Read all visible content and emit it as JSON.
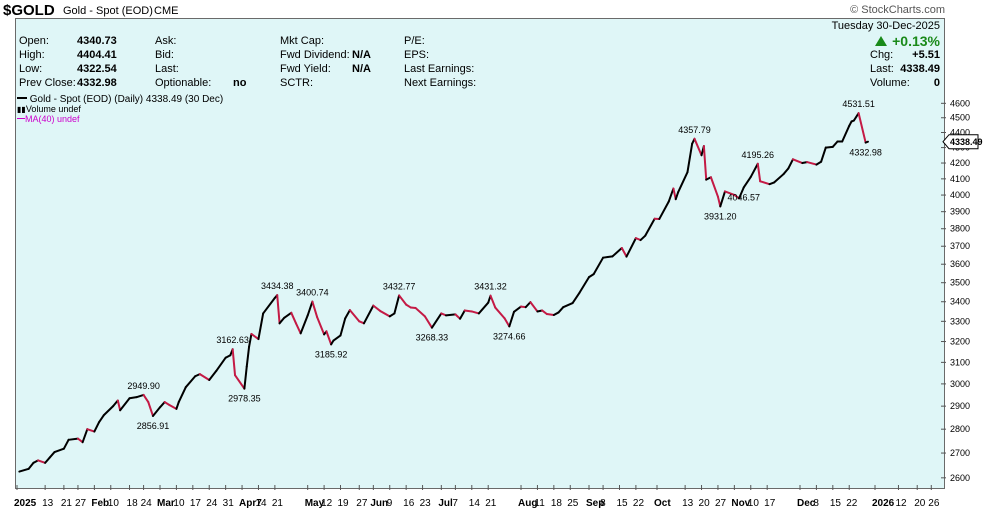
{
  "header": {
    "symbol": "$GOLD",
    "description": "Gold - Spot (EOD)",
    "exchange": "CME",
    "brand": "© StockCharts.com"
  },
  "quote": {
    "date": "Tuesday  30-Dec-2025",
    "change_pct": "+0.13%",
    "change_color": "#1a8a1a",
    "left_stats": [
      {
        "label": "Open:",
        "value": "4340.73"
      },
      {
        "label": "High:",
        "value": "4404.41"
      },
      {
        "label": "Low:",
        "value": "4322.54"
      },
      {
        "label": "Prev Close:",
        "value": "4332.98"
      }
    ],
    "col2": [
      {
        "label": "Ask:",
        "value": ""
      },
      {
        "label": "Bid:",
        "value": ""
      },
      {
        "label": "Last:",
        "value": ""
      },
      {
        "label": "Optionable:",
        "value": "no"
      }
    ],
    "col3": [
      {
        "label": "Mkt Cap:",
        "value": ""
      },
      {
        "label": "Fwd Dividend:",
        "value": "N/A"
      },
      {
        "label": "Fwd Yield:",
        "value": "N/A"
      },
      {
        "label": "SCTR:",
        "value": ""
      }
    ],
    "col4": [
      {
        "label": "P/E:",
        "value": ""
      },
      {
        "label": "EPS:",
        "value": ""
      },
      {
        "label": "Last Earnings:",
        "value": ""
      },
      {
        "label": "Next Earnings:",
        "value": ""
      }
    ],
    "right_stats": [
      {
        "label": "Chg:",
        "value": "+5.51"
      },
      {
        "label": "Last:",
        "value": "4338.49"
      },
      {
        "label": "Volume:",
        "value": "0"
      }
    ]
  },
  "legend": {
    "main": "Gold - Spot (EOD) (Daily) 4338.49 (30 Dec)",
    "volume": "Volume undef",
    "ma": "MA(40) undef"
  },
  "colors": {
    "background": "#dff6f7",
    "up_line": "#000000",
    "down_line": "#c41a45",
    "ma_legend": "#cc00cc",
    "price_tag_border": "#000000"
  },
  "chart_data": {
    "type": "line",
    "title": "Gold - Spot (EOD) (Daily)",
    "last_price_label": "4338.49",
    "y_scale": "log",
    "ylim": [
      2560,
      4680
    ],
    "yticks": [
      2600,
      2700,
      2800,
      2900,
      3000,
      3100,
      3200,
      3300,
      3400,
      3500,
      3600,
      3700,
      3800,
      3900,
      4000,
      4100,
      4200,
      4300,
      4400,
      4500,
      4600
    ],
    "xlim": [
      "2025-01-01",
      "2026-01-31"
    ],
    "xticks": [
      {
        "date": "2025-01-01",
        "label": "2025",
        "bold": true
      },
      {
        "date": "2025-01-13",
        "label": "13"
      },
      {
        "date": "2025-01-21",
        "label": "21"
      },
      {
        "date": "2025-01-27",
        "label": "27"
      },
      {
        "date": "2025-02-03",
        "label": "Feb",
        "bold": true
      },
      {
        "date": "2025-02-10",
        "label": "10"
      },
      {
        "date": "2025-02-18",
        "label": "18"
      },
      {
        "date": "2025-02-24",
        "label": "24"
      },
      {
        "date": "2025-03-03",
        "label": "Mar",
        "bold": true
      },
      {
        "date": "2025-03-10",
        "label": "10"
      },
      {
        "date": "2025-03-17",
        "label": "17"
      },
      {
        "date": "2025-03-24",
        "label": "24"
      },
      {
        "date": "2025-03-31",
        "label": "31"
      },
      {
        "date": "2025-04-07",
        "label": "Apr7",
        "bold": true
      },
      {
        "date": "2025-04-14",
        "label": "14"
      },
      {
        "date": "2025-04-21",
        "label": "21"
      },
      {
        "date": "2025-05-05",
        "label": "May",
        "bold": true
      },
      {
        "date": "2025-05-12",
        "label": "12"
      },
      {
        "date": "2025-05-19",
        "label": "19"
      },
      {
        "date": "2025-05-27",
        "label": "27"
      },
      {
        "date": "2025-06-02",
        "label": "Jun",
        "bold": true
      },
      {
        "date": "2025-06-09",
        "label": "9"
      },
      {
        "date": "2025-06-16",
        "label": "16"
      },
      {
        "date": "2025-06-23",
        "label": "23"
      },
      {
        "date": "2025-07-01",
        "label": "Jul",
        "bold": true
      },
      {
        "date": "2025-07-07",
        "label": "7"
      },
      {
        "date": "2025-07-14",
        "label": "14"
      },
      {
        "date": "2025-07-21",
        "label": "21"
      },
      {
        "date": "2025-08-04",
        "label": "Aug",
        "bold": true
      },
      {
        "date": "2025-08-11",
        "label": "11"
      },
      {
        "date": "2025-08-18",
        "label": "18"
      },
      {
        "date": "2025-08-25",
        "label": "25"
      },
      {
        "date": "2025-09-02",
        "label": "Sep",
        "bold": true
      },
      {
        "date": "2025-09-08",
        "label": "8"
      },
      {
        "date": "2025-09-15",
        "label": "15"
      },
      {
        "date": "2025-09-22",
        "label": "22"
      },
      {
        "date": "2025-10-01",
        "label": "Oct",
        "bold": true
      },
      {
        "date": "2025-10-13",
        "label": "13"
      },
      {
        "date": "2025-10-20",
        "label": "20"
      },
      {
        "date": "2025-10-27",
        "label": "27"
      },
      {
        "date": "2025-11-03",
        "label": "Nov",
        "bold": true
      },
      {
        "date": "2025-11-10",
        "label": "10"
      },
      {
        "date": "2025-11-17",
        "label": "17"
      },
      {
        "date": "2025-12-01",
        "label": "Dec",
        "bold": true
      },
      {
        "date": "2025-12-08",
        "label": "8"
      },
      {
        "date": "2025-12-15",
        "label": "15"
      },
      {
        "date": "2025-12-22",
        "label": "22"
      },
      {
        "date": "2026-01-02",
        "label": "2026",
        "bold": true
      },
      {
        "date": "2026-01-12",
        "label": "12"
      },
      {
        "date": "2026-01-20",
        "label": "20"
      },
      {
        "date": "2026-01-26",
        "label": "26"
      }
    ],
    "series": [
      {
        "points": [
          [
            "2025-01-02",
            2625
          ],
          [
            "2025-01-06",
            2636
          ],
          [
            "2025-01-08",
            2660
          ],
          [
            "2025-01-10",
            2670
          ],
          [
            "2025-01-13",
            2660
          ],
          [
            "2025-01-15",
            2682
          ],
          [
            "2025-01-17",
            2704
          ],
          [
            "2025-01-21",
            2718
          ],
          [
            "2025-01-23",
            2755
          ],
          [
            "2025-01-27",
            2760
          ],
          [
            "2025-01-29",
            2745
          ],
          [
            "2025-01-31",
            2800
          ],
          [
            "2025-02-03",
            2790
          ],
          [
            "2025-02-05",
            2830
          ],
          [
            "2025-02-07",
            2860
          ],
          [
            "2025-02-11",
            2900
          ],
          [
            "2025-02-13",
            2925
          ],
          [
            "2025-02-14",
            2882
          ],
          [
            "2025-02-18",
            2935
          ],
          [
            "2025-02-21",
            2940
          ],
          [
            "2025-02-24",
            2949.9
          ],
          [
            "2025-02-26",
            2918
          ],
          [
            "2025-02-28",
            2856.91
          ],
          [
            "2025-03-03",
            2895
          ],
          [
            "2025-03-05",
            2918
          ],
          [
            "2025-03-07",
            2905
          ],
          [
            "2025-03-10",
            2888
          ],
          [
            "2025-03-11",
            2918
          ],
          [
            "2025-03-14",
            2985
          ],
          [
            "2025-03-18",
            3035
          ],
          [
            "2025-03-20",
            3045
          ],
          [
            "2025-03-24",
            3018
          ],
          [
            "2025-03-27",
            3060
          ],
          [
            "2025-03-31",
            3122
          ],
          [
            "2025-04-02",
            3134
          ],
          [
            "2025-04-03",
            3162.63
          ],
          [
            "2025-04-04",
            3040
          ],
          [
            "2025-04-08",
            2978.35
          ],
          [
            "2025-04-09",
            3080
          ],
          [
            "2025-04-10",
            3175
          ],
          [
            "2025-04-11",
            3237
          ],
          [
            "2025-04-14",
            3212
          ],
          [
            "2025-04-16",
            3340
          ],
          [
            "2025-04-21",
            3420
          ],
          [
            "2025-04-22",
            3434.38
          ],
          [
            "2025-04-23",
            3290
          ],
          [
            "2025-04-25",
            3318
          ],
          [
            "2025-04-28",
            3343
          ],
          [
            "2025-04-30",
            3290
          ],
          [
            "2025-05-02",
            3240
          ],
          [
            "2025-05-05",
            3330
          ],
          [
            "2025-05-07",
            3400.74
          ],
          [
            "2025-05-09",
            3322
          ],
          [
            "2025-05-12",
            3235
          ],
          [
            "2025-05-13",
            3250
          ],
          [
            "2025-05-15",
            3185.92
          ],
          [
            "2025-05-16",
            3205
          ],
          [
            "2025-05-19",
            3230
          ],
          [
            "2025-05-21",
            3315
          ],
          [
            "2025-05-23",
            3357
          ],
          [
            "2025-05-27",
            3300
          ],
          [
            "2025-05-29",
            3290
          ],
          [
            "2025-06-02",
            3380
          ],
          [
            "2025-06-05",
            3352
          ],
          [
            "2025-06-09",
            3325
          ],
          [
            "2025-06-11",
            3340
          ],
          [
            "2025-06-13",
            3432.77
          ],
          [
            "2025-06-16",
            3385
          ],
          [
            "2025-06-18",
            3370
          ],
          [
            "2025-06-20",
            3368
          ],
          [
            "2025-06-24",
            3325
          ],
          [
            "2025-06-27",
            3268.33
          ],
          [
            "2025-07-01",
            3340
          ],
          [
            "2025-07-03",
            3330
          ],
          [
            "2025-07-07",
            3335
          ],
          [
            "2025-07-09",
            3313
          ],
          [
            "2025-07-11",
            3355
          ],
          [
            "2025-07-14",
            3350
          ],
          [
            "2025-07-17",
            3340
          ],
          [
            "2025-07-21",
            3395
          ],
          [
            "2025-07-22",
            3431.32
          ],
          [
            "2025-07-24",
            3370
          ],
          [
            "2025-07-28",
            3315
          ],
          [
            "2025-07-30",
            3274.66
          ],
          [
            "2025-08-01",
            3348
          ],
          [
            "2025-08-04",
            3375
          ],
          [
            "2025-08-06",
            3372
          ],
          [
            "2025-08-08",
            3398
          ],
          [
            "2025-08-11",
            3350
          ],
          [
            "2025-08-13",
            3355
          ],
          [
            "2025-08-15",
            3337
          ],
          [
            "2025-08-18",
            3332
          ],
          [
            "2025-08-20",
            3345
          ],
          [
            "2025-08-22",
            3372
          ],
          [
            "2025-08-26",
            3393
          ],
          [
            "2025-08-29",
            3448
          ],
          [
            "2025-09-02",
            3530
          ],
          [
            "2025-09-04",
            3546
          ],
          [
            "2025-09-08",
            3636
          ],
          [
            "2025-09-10",
            3640
          ],
          [
            "2025-09-12",
            3643
          ],
          [
            "2025-09-16",
            3690
          ],
          [
            "2025-09-18",
            3642
          ],
          [
            "2025-09-22",
            3746
          ],
          [
            "2025-09-24",
            3735
          ],
          [
            "2025-09-26",
            3760
          ],
          [
            "2025-09-30",
            3858
          ],
          [
            "2025-10-02",
            3857
          ],
          [
            "2025-10-06",
            3960
          ],
          [
            "2025-10-08",
            4040
          ],
          [
            "2025-10-09",
            3975
          ],
          [
            "2025-10-10",
            4017
          ],
          [
            "2025-10-14",
            4142
          ],
          [
            "2025-10-16",
            4326
          ],
          [
            "2025-10-17",
            4357.79
          ],
          [
            "2025-10-20",
            4250
          ],
          [
            "2025-10-21",
            4310
          ],
          [
            "2025-10-22",
            4095
          ],
          [
            "2025-10-24",
            4110
          ],
          [
            "2025-10-27",
            3990
          ],
          [
            "2025-10-28",
            3931.2
          ],
          [
            "2025-10-30",
            4022
          ],
          [
            "2025-11-03",
            4001
          ],
          [
            "2025-11-05",
            3980
          ],
          [
            "2025-11-07",
            4046.57
          ],
          [
            "2025-11-10",
            4112
          ],
          [
            "2025-11-13",
            4195.26
          ],
          [
            "2025-11-14",
            4085
          ],
          [
            "2025-11-18",
            4067
          ],
          [
            "2025-11-20",
            4078
          ],
          [
            "2025-11-24",
            4130
          ],
          [
            "2025-11-26",
            4165
          ],
          [
            "2025-11-28",
            4224
          ],
          [
            "2025-12-02",
            4200
          ],
          [
            "2025-12-04",
            4206
          ],
          [
            "2025-12-08",
            4190
          ],
          [
            "2025-12-10",
            4208
          ],
          [
            "2025-12-12",
            4300
          ],
          [
            "2025-12-15",
            4305
          ],
          [
            "2025-12-17",
            4340
          ],
          [
            "2025-12-19",
            4340
          ],
          [
            "2025-12-22",
            4445
          ],
          [
            "2025-12-23",
            4475
          ],
          [
            "2025-12-24",
            4481
          ],
          [
            "2025-12-26",
            4531.51
          ],
          [
            "2025-12-29",
            4332.98
          ],
          [
            "2025-12-30",
            4338.49
          ]
        ]
      }
    ],
    "annotations": [
      {
        "date": "2025-02-24",
        "label": "2949.90",
        "pos": "above"
      },
      {
        "date": "2025-02-28",
        "label": "2856.91",
        "pos": "below"
      },
      {
        "date": "2025-04-03",
        "label": "3162.63",
        "pos": "above"
      },
      {
        "date": "2025-04-08",
        "label": "2978.35",
        "pos": "below"
      },
      {
        "date": "2025-04-22",
        "label": "3434.38",
        "pos": "above"
      },
      {
        "date": "2025-05-07",
        "label": "3400.74",
        "pos": "above"
      },
      {
        "date": "2025-05-15",
        "label": "3185.92",
        "pos": "below"
      },
      {
        "date": "2025-06-13",
        "label": "3432.77",
        "pos": "above"
      },
      {
        "date": "2025-06-27",
        "label": "3268.33",
        "pos": "below"
      },
      {
        "date": "2025-07-22",
        "label": "3431.32",
        "pos": "above"
      },
      {
        "date": "2025-07-30",
        "label": "3274.66",
        "pos": "below"
      },
      {
        "date": "2025-10-17",
        "label": "4357.79",
        "pos": "above"
      },
      {
        "date": "2025-10-28",
        "label": "3931.20",
        "pos": "below"
      },
      {
        "date": "2025-11-07",
        "label": "4046.57",
        "pos": "below"
      },
      {
        "date": "2025-11-13",
        "label": "4195.26",
        "pos": "above"
      },
      {
        "date": "2025-12-26",
        "label": "4531.51",
        "pos": "above"
      },
      {
        "date": "2025-12-29",
        "label": "4332.98",
        "pos": "below"
      }
    ]
  }
}
